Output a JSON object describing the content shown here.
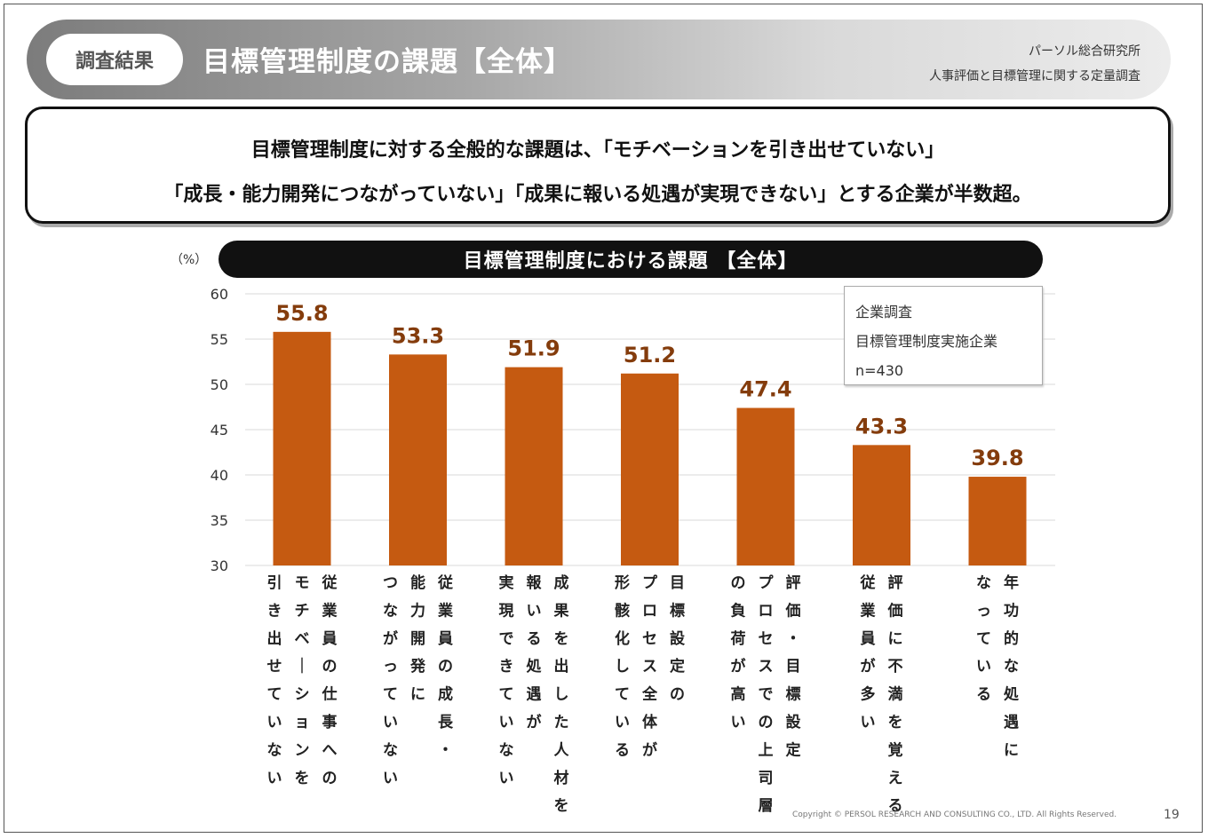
{
  "header": {
    "tag": "調査結果",
    "title": "目標管理制度の課題【全体】",
    "org": "パーソル総合研究所",
    "survey": "人事評価と目標管理に関する定量調査"
  },
  "summary": {
    "line1": "目標管理制度に対する全般的な課題は、「モチベーションを引き出せていない」",
    "line2": "「成長・能力開発につながっていない」「成果に報いる処遇が実現できない」とする企業が半数超。"
  },
  "note": {
    "line1": "企業調査",
    "line2": "目標管理制度実施企業",
    "line3": "n=430"
  },
  "colors": {
    "bar": "#C55A11",
    "value_label": "#843C0C",
    "grid": "#d9d9d9"
  },
  "chart_data": {
    "type": "bar",
    "title": "目標管理制度における課題 【全体】",
    "unit": "（%）",
    "ylim": [
      30,
      60
    ],
    "yticks": [
      30,
      35,
      40,
      45,
      50,
      55,
      60
    ],
    "grid": true,
    "categories": [
      "従業員の仕事へのモチベーションを引き出せていない",
      "従業員の成長・能力開発につながっていない",
      "成果を出した人材を報いる処遇が実現できていない",
      "目標設定のプロセス全体が形骸化している",
      "評価・目標設定プロセスでの上司層の負荷が高い",
      "評価に不満を覚える従業員が多い",
      "年功的な処遇になっている"
    ],
    "label_columns": [
      [
        "従業員の仕事への",
        "モチベーションを",
        "引き出せていない"
      ],
      [
        "従業員の成長・",
        "能力開発に",
        "つながっていない"
      ],
      [
        "成果を出した人材を",
        "報いる処遇が",
        "実現できていない"
      ],
      [
        "目標設定の",
        "プロセス全体が",
        "形骸化している"
      ],
      [
        "評価・目標設定",
        "プロセスでの上司層",
        "の負荷が高い"
      ],
      [
        "評価に不満を覚える",
        "従業員が多い"
      ],
      [
        "年功的な処遇に",
        "なっている"
      ]
    ],
    "values": [
      55.8,
      53.3,
      51.9,
      51.2,
      47.4,
      43.3,
      39.8
    ]
  },
  "footer": {
    "copyright": "Copyright © PERSOL RESEARCH AND CONSULTING CO., LTD. All Rights Reserved.",
    "page": "19"
  }
}
